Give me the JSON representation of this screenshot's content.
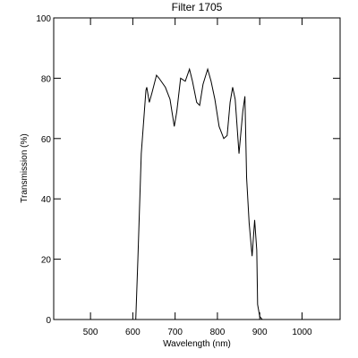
{
  "chart_data": {
    "type": "line",
    "title": "Filter 1705",
    "x_label": "Wavelength (nm)",
    "y_label": "Transmission (%)",
    "color": "#000000",
    "x": [
      600,
      607,
      612,
      620,
      631,
      633,
      639,
      645,
      656,
      662,
      677,
      688,
      698,
      704,
      713,
      724,
      734,
      741,
      751,
      758,
      766,
      777,
      785,
      794,
      804,
      815,
      823,
      830,
      836,
      842,
      851,
      860,
      865,
      869,
      875,
      882,
      888,
      893,
      895,
      900,
      906,
      915
    ],
    "y": [
      0,
      0,
      20,
      55,
      76,
      77,
      72,
      75,
      81,
      80,
      77,
      73,
      64,
      69,
      80,
      79,
      83,
      79,
      72,
      71,
      78,
      83,
      79,
      73,
      64,
      60,
      61,
      72,
      77,
      73,
      55,
      69,
      74,
      47,
      32,
      21,
      33,
      23,
      5,
      1,
      0,
      0
    ],
    "xlim": [
      413,
      1090
    ],
    "ylim": [
      0,
      100
    ],
    "xticks": [
      500,
      600,
      700,
      800,
      900,
      1000
    ],
    "yticks": [
      0,
      20,
      40,
      60,
      80,
      100
    ]
  }
}
